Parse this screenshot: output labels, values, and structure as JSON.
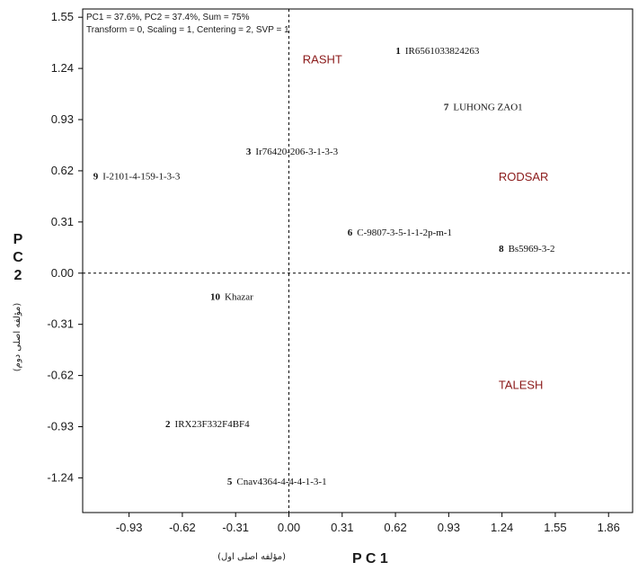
{
  "chart_data": {
    "type": "scatter",
    "header": {
      "line1": "PC1 = 37.6%, PC2 = 37.4%, Sum = 75%",
      "line2": "Transform = 0, Scaling = 1, Centering = 2, SVP = 1"
    },
    "xlabel": "P C 1",
    "xlabel_sub": "(مؤلفه اصلی اول)",
    "ylabel": "P C 2",
    "ylabel_sub": "(مؤلفه اصلی دوم)",
    "x_ticks": [
      "-0.93",
      "-0.62",
      "-0.31",
      "0.00",
      "0.31",
      "0.62",
      "0.93",
      "1.24",
      "1.55",
      "1.86"
    ],
    "y_ticks": [
      "1.55",
      "1.24",
      "0.93",
      "0.62",
      "0.31",
      "0.00",
      "-0.31",
      "-0.62",
      "-0.93",
      "-1.24"
    ],
    "xlim": [
      -1.2,
      2.0
    ],
    "ylim": [
      -1.45,
      1.6
    ],
    "grid": false,
    "reference_lines": {
      "x": 0,
      "y": 0,
      "style": "dashed"
    },
    "points": [
      {
        "num": "1",
        "label": "IR6561033824263",
        "x": 0.65,
        "y": 1.35
      },
      {
        "num": "2",
        "label": "IRX23F332F4BF4",
        "x": -0.69,
        "y": -0.91
      },
      {
        "num": "3",
        "label": "Ir76420-206-3-1-3-3",
        "x": -0.22,
        "y": 0.74
      },
      {
        "num": "5",
        "label": "Cnav4364-4-4-4-1-3-1",
        "x": -0.33,
        "y": -1.26
      },
      {
        "num": "6",
        "label": "C-9807-3-5-1-1-2p-m-1",
        "x": 0.37,
        "y": 0.25
      },
      {
        "num": "7",
        "label": "LUHONG ZAO1",
        "x": 0.93,
        "y": 1.01
      },
      {
        "num": "8",
        "label": "Bs5969-3-2",
        "x": 1.25,
        "y": 0.15
      },
      {
        "num": "9",
        "label": "I-2101-4-159-1-3-3",
        "x": -1.11,
        "y": 0.59
      },
      {
        "num": "10",
        "label": "Khazar",
        "x": -0.4,
        "y": -0.14
      }
    ],
    "group_labels": [
      {
        "label": "RASHT",
        "x": 0.08,
        "y": 1.27
      },
      {
        "label": "RODSAR",
        "x": 1.22,
        "y": 0.56
      },
      {
        "label": "TALESH",
        "x": 1.22,
        "y": -0.7
      }
    ],
    "colors": {
      "point_text": "#111111",
      "group_text": "#8b1a1a",
      "axis": "#000000"
    }
  }
}
